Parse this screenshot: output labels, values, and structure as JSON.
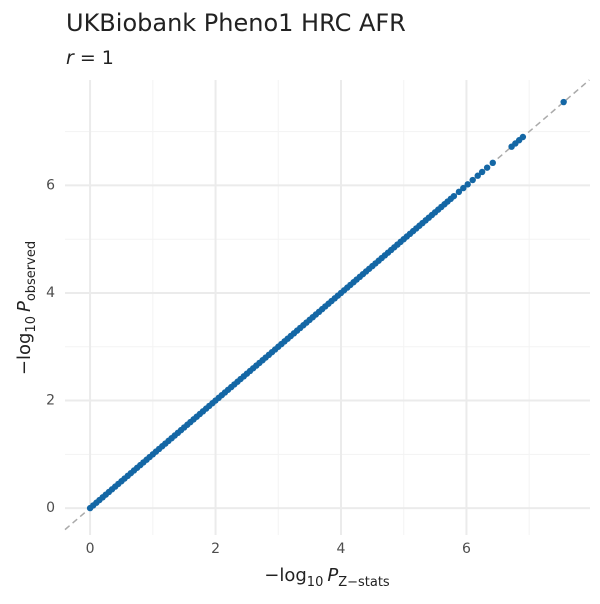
{
  "chart_data": {
    "type": "scatter",
    "title": "UKBiobank Pheno1 HRC AFR",
    "subtitle": {
      "var": "r",
      "rest": " = 1"
    },
    "x_label": {
      "prefix": "−log",
      "sub": "10",
      "var": "P",
      "subvar": "Z−stats"
    },
    "y_label": {
      "prefix": "−log",
      "sub": "10",
      "var": "P",
      "subvar": "observed"
    },
    "xlim": [
      -0.4,
      7.97
    ],
    "ylim": [
      -0.5,
      7.96
    ],
    "xticks": [
      0,
      2,
      4,
      6
    ],
    "yticks": [
      0,
      2,
      4,
      6
    ],
    "minor_xticks": [
      1,
      3,
      5,
      7
    ],
    "minor_yticks": [
      1,
      3,
      5,
      7
    ],
    "grid": true,
    "color": "#1467a5",
    "x": [
      0,
      0.05,
      0.1,
      0.15,
      0.2,
      0.25,
      0.3,
      0.35,
      0.4,
      0.45,
      0.5,
      0.55,
      0.6,
      0.65,
      0.7,
      0.75,
      0.8,
      0.85,
      0.9,
      0.95,
      1,
      1.05,
      1.1,
      1.15,
      1.2,
      1.25,
      1.3,
      1.35,
      1.4,
      1.45,
      1.5,
      1.55,
      1.6,
      1.65,
      1.7,
      1.75,
      1.8,
      1.85,
      1.9,
      1.95,
      2,
      2.05,
      2.1,
      2.15,
      2.2,
      2.25,
      2.3,
      2.35,
      2.4,
      2.45,
      2.5,
      2.55,
      2.6,
      2.65,
      2.7,
      2.75,
      2.8,
      2.85,
      2.9,
      2.95,
      3,
      3.05,
      3.1,
      3.15,
      3.2,
      3.25,
      3.3,
      3.35,
      3.4,
      3.45,
      3.5,
      3.55,
      3.6,
      3.65,
      3.7,
      3.75,
      3.8,
      3.85,
      3.9,
      3.95,
      4,
      4.05,
      4.1,
      4.15,
      4.2,
      4.25,
      4.3,
      4.35,
      4.4,
      4.45,
      4.5,
      4.55,
      4.6,
      4.65,
      4.7,
      4.75,
      4.8,
      4.85,
      4.9,
      4.95,
      5,
      5.05,
      5.1,
      5.15,
      5.2,
      5.25,
      5.3,
      5.35,
      5.4,
      5.45,
      5.5,
      5.55,
      5.6,
      5.65,
      5.7,
      5.75,
      5.8,
      5.88,
      5.95,
      6.02,
      6.1,
      6.18,
      6.25,
      6.33,
      6.42,
      6.72,
      6.78,
      6.84,
      6.9,
      7.55
    ],
    "values": [
      0,
      0.05,
      0.1,
      0.15,
      0.2,
      0.25,
      0.3,
      0.35,
      0.4,
      0.45,
      0.5,
      0.55,
      0.6,
      0.65,
      0.7,
      0.75,
      0.8,
      0.85,
      0.9,
      0.95,
      1,
      1.05,
      1.1,
      1.15,
      1.2,
      1.25,
      1.3,
      1.35,
      1.4,
      1.45,
      1.5,
      1.55,
      1.6,
      1.65,
      1.7,
      1.75,
      1.8,
      1.85,
      1.9,
      1.95,
      2,
      2.05,
      2.1,
      2.15,
      2.2,
      2.25,
      2.3,
      2.35,
      2.4,
      2.45,
      2.5,
      2.55,
      2.6,
      2.65,
      2.7,
      2.75,
      2.8,
      2.85,
      2.9,
      2.95,
      3,
      3.05,
      3.1,
      3.15,
      3.2,
      3.25,
      3.3,
      3.35,
      3.4,
      3.45,
      3.5,
      3.55,
      3.6,
      3.65,
      3.7,
      3.75,
      3.8,
      3.85,
      3.9,
      3.95,
      4,
      4.05,
      4.1,
      4.15,
      4.2,
      4.25,
      4.3,
      4.35,
      4.4,
      4.45,
      4.5,
      4.55,
      4.6,
      4.65,
      4.7,
      4.75,
      4.8,
      4.85,
      4.9,
      4.95,
      5,
      5.05,
      5.1,
      5.15,
      5.2,
      5.25,
      5.3,
      5.35,
      5.4,
      5.45,
      5.5,
      5.55,
      5.6,
      5.65,
      5.7,
      5.75,
      5.8,
      5.88,
      5.95,
      6.02,
      6.1,
      6.18,
      6.25,
      6.33,
      6.42,
      6.72,
      6.78,
      6.84,
      6.9,
      7.55
    ]
  }
}
